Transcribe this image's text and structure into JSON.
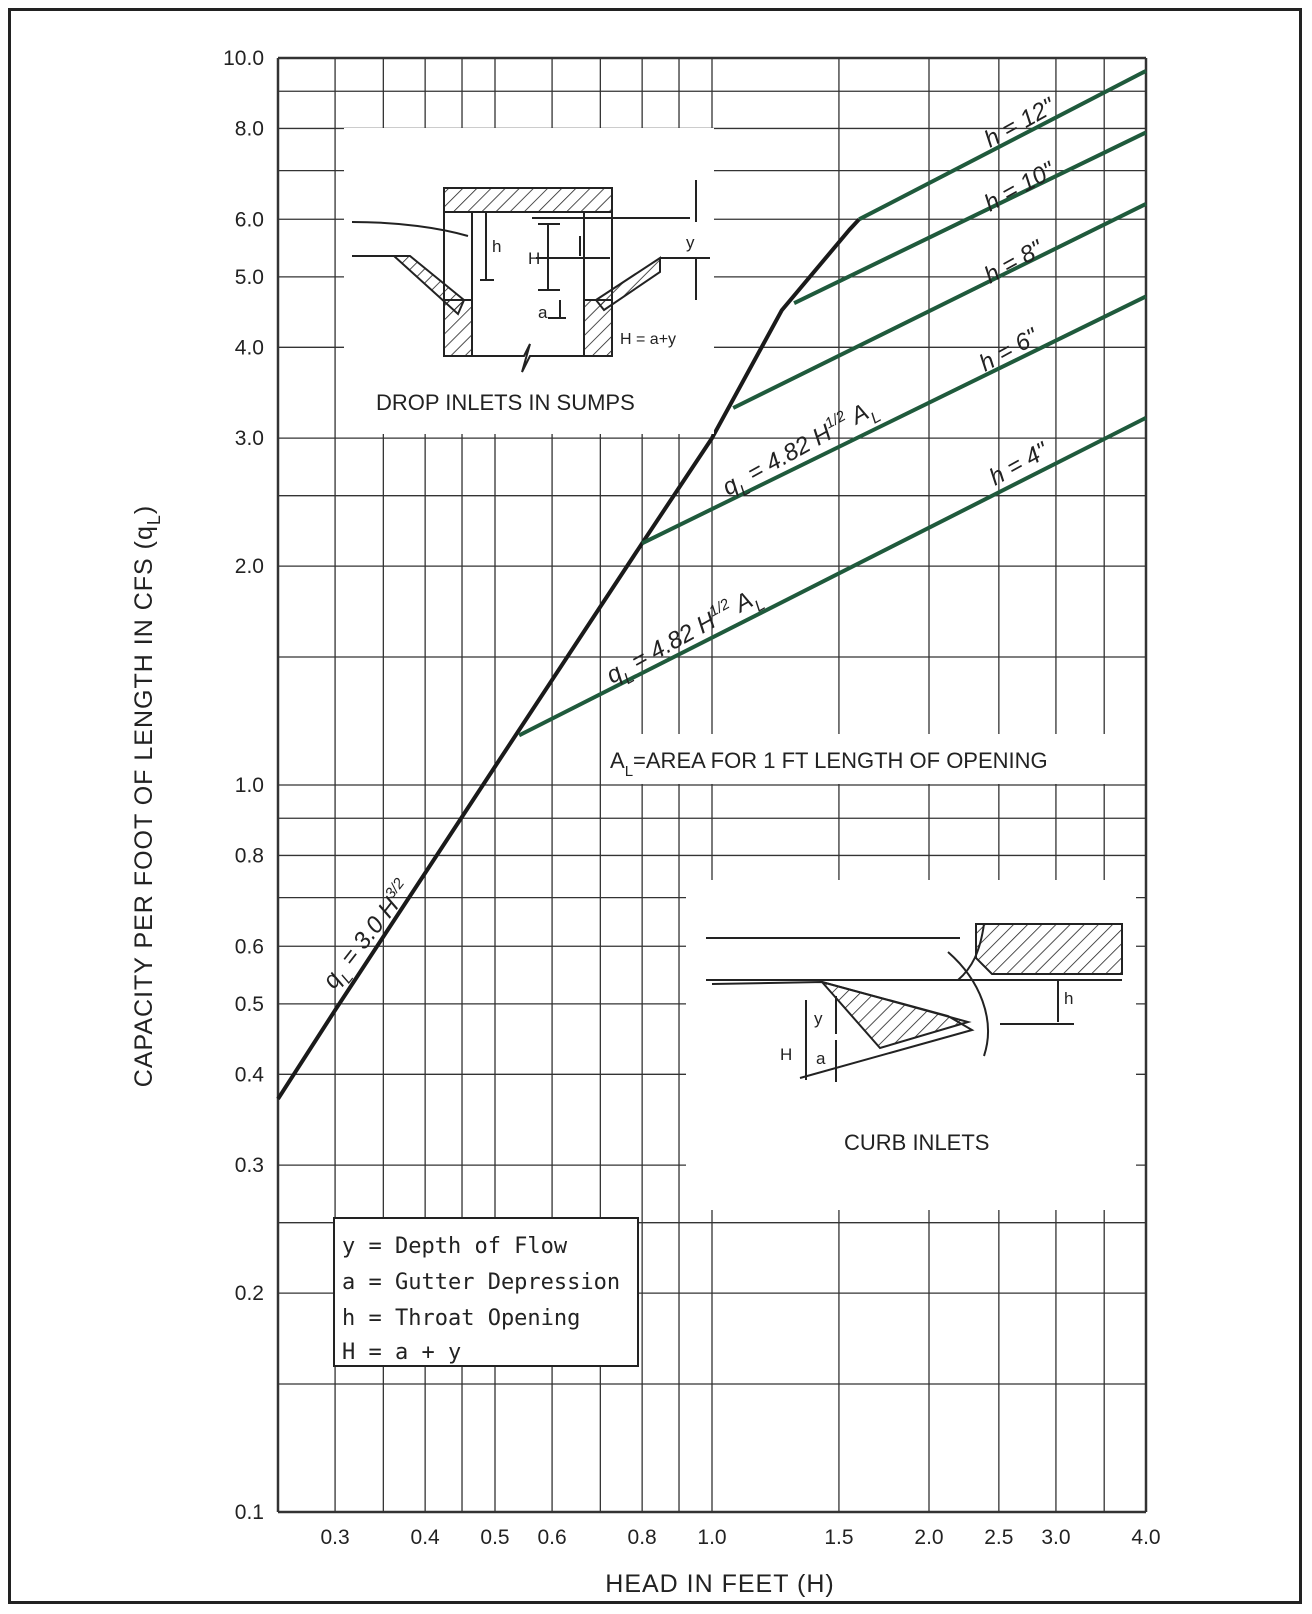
{
  "chart_data": {
    "type": "line",
    "xscale": "log",
    "yscale": "log",
    "xlim": [
      0.25,
      4.0
    ],
    "ylim": [
      0.1,
      10.0
    ],
    "xlabel": "HEAD IN FEET (H)",
    "ylabel_main": "CAPACITY PER FOOT OF LENGTH IN CFS (q",
    "ylabel_sub": "L",
    "ylabel_close": ")",
    "x_ticks": [
      {
        "v": 0.3,
        "label": "0.3"
      },
      {
        "v": 0.4,
        "label": "0.4"
      },
      {
        "v": 0.5,
        "label": "0.5"
      },
      {
        "v": 0.6,
        "label": "0.6"
      },
      {
        "v": 0.8,
        "label": "0.8"
      },
      {
        "v": 1.0,
        "label": "1.0"
      },
      {
        "v": 1.5,
        "label": "1.5"
      },
      {
        "v": 2.0,
        "label": "2.0"
      },
      {
        "v": 2.5,
        "label": "2.5"
      },
      {
        "v": 3.0,
        "label": "3.0"
      },
      {
        "v": 4.0,
        "label": "4.0"
      }
    ],
    "y_ticks": [
      {
        "v": 0.1,
        "label": "0.1"
      },
      {
        "v": 0.2,
        "label": "0.2"
      },
      {
        "v": 0.3,
        "label": "0.3"
      },
      {
        "v": 0.4,
        "label": "0.4"
      },
      {
        "v": 0.5,
        "label": "0.5"
      },
      {
        "v": 0.6,
        "label": "0.6"
      },
      {
        "v": 0.8,
        "label": "0.8"
      },
      {
        "v": 1.0,
        "label": "1.0"
      },
      {
        "v": 2.0,
        "label": "2.0"
      },
      {
        "v": 3.0,
        "label": "3.0"
      },
      {
        "v": 4.0,
        "label": "4.0"
      },
      {
        "v": 5.0,
        "label": "5.0"
      },
      {
        "v": 6.0,
        "label": "6.0"
      },
      {
        "v": 8.0,
        "label": "8.0"
      },
      {
        "v": 10.0,
        "label": "10.0"
      }
    ],
    "x_grid": [
      0.25,
      0.3,
      0.35,
      0.4,
      0.45,
      0.5,
      0.6,
      0.7,
      0.8,
      0.9,
      1.0,
      1.5,
      2.0,
      2.5,
      3.0,
      3.5,
      4.0
    ],
    "y_grid": [
      0.1,
      0.15,
      0.2,
      0.25,
      0.3,
      0.4,
      0.5,
      0.6,
      0.7,
      0.8,
      0.9,
      1.0,
      1.5,
      2.0,
      2.5,
      3.0,
      4.0,
      5.0,
      6.0,
      7.0,
      8.0,
      9.0,
      10.0
    ],
    "series": [
      {
        "name": "q_L = 3.0 H^3/2",
        "x": [
          0.25,
          0.3,
          0.5,
          0.8,
          1.0,
          1.25,
          1.55,
          1.6
        ],
        "y": [
          0.37,
          0.49,
          1.06,
          2.15,
          3.0,
          4.5,
          5.8,
          6.0
        ]
      },
      {
        "name": "h = 4\"",
        "x": [
          0.54,
          4.0
        ],
        "y": [
          1.17,
          3.2
        ]
      },
      {
        "name": "h = 6\"",
        "x": [
          0.8,
          4.0
        ],
        "y": [
          2.15,
          4.7
        ]
      },
      {
        "name": "h = 8\"",
        "x": [
          1.07,
          4.0
        ],
        "y": [
          3.3,
          6.3
        ]
      },
      {
        "name": "h = 10\"",
        "x": [
          1.3,
          4.0
        ],
        "y": [
          4.6,
          7.9
        ]
      },
      {
        "name": "h = 12\"",
        "x": [
          1.6,
          4.0
        ],
        "y": [
          6.0,
          9.6
        ]
      }
    ],
    "annotations": {
      "h12": "h = 12\"",
      "h10": "h = 10\"",
      "h8": "h = 8\"",
      "h6": "h = 6\"",
      "h4": "h = 4\"",
      "eq_main": "q",
      "eq_main_sub": "L",
      "eq_main_rest": " = 3.0 H",
      "eq_main_sup": "3/2",
      "eq_weir": "q",
      "eq_weir_sub": "L",
      "eq_weir_rest": " = 4.82 H",
      "eq_weir_sup": "1/2",
      "eq_weir_tail": " A",
      "eq_weir_tail_sub": "L",
      "area_note_a": "A",
      "area_note_sub": "L",
      "area_note_rest": "=AREA FOR 1 FT LENGTH OF OPENING"
    }
  },
  "diagram_drop": {
    "caption": "DROP INLETS IN SUMPS",
    "label_h": "h",
    "label_H": "H",
    "label_y": "y",
    "label_a": "a",
    "formula": "H = a+y"
  },
  "diagram_curb": {
    "caption": "CURB INLETS",
    "label_h": "h",
    "label_H": "H",
    "label_y": "y",
    "label_a": "a"
  },
  "legend": {
    "line1": "y = Depth of Flow",
    "line2": "a = Gutter Depression",
    "line3": "h = Throat Opening",
    "line4": "H = a + y"
  },
  "colors": {
    "grid": "#333333",
    "main_curve": "#1a1a1a",
    "weir_curves": "#1f5a3c",
    "text": "#222222"
  }
}
